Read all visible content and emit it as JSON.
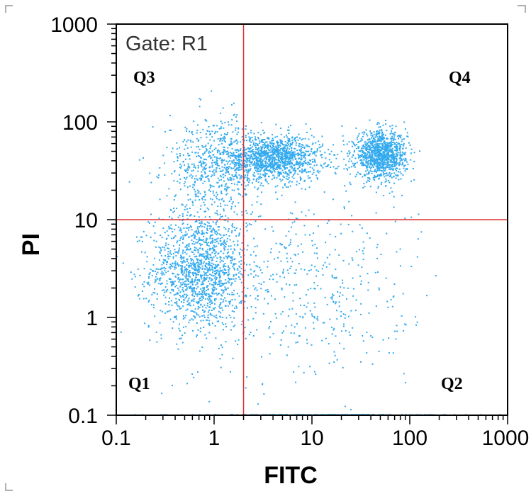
{
  "chart_data": {
    "type": "scatter",
    "title": "",
    "annotation": "Gate: R1",
    "xlabel": "FITC",
    "ylabel": "PI",
    "xscale": "log",
    "yscale": "log",
    "xlim": [
      0.1,
      1000
    ],
    "ylim": [
      0.1,
      1000
    ],
    "x_ticks": [
      "0.1",
      "1",
      "10",
      "100",
      "1000"
    ],
    "y_ticks": [
      "0.1",
      "1",
      "10",
      "100",
      "1000"
    ],
    "quadrant_gates": {
      "x": 2,
      "y": 10
    },
    "quadrants": [
      {
        "label": "Q1",
        "position": "bottom-left"
      },
      {
        "label": "Q2",
        "position": "bottom-right"
      },
      {
        "label": "Q3",
        "position": "top-left"
      },
      {
        "label": "Q4",
        "position": "top-right"
      }
    ],
    "series": [
      {
        "color": "#33aaee",
        "clusters": [
          {
            "center": [
              0.7,
              3
            ],
            "spread": [
              0.25,
              0.3
            ],
            "count": 1400
          },
          {
            "center": [
              4,
              42
            ],
            "spread": [
              0.25,
              0.12
            ],
            "count": 1300
          },
          {
            "center": [
              50,
              45
            ],
            "spread": [
              0.13,
              0.12
            ],
            "count": 1100
          },
          {
            "center": [
              1.0,
              35
            ],
            "spread": [
              0.25,
              0.25
            ],
            "count": 600
          },
          {
            "center": [
              8,
              2
            ],
            "spread": [
              0.55,
              0.5
            ],
            "count": 500
          },
          {
            "center": [
              15,
              0.1
            ],
            "spread": [
              0.7,
              0
            ],
            "count": 200
          }
        ]
      }
    ],
    "colors": {
      "points": "#33aaee",
      "gates": "#e03030",
      "frame": "#000000"
    }
  }
}
